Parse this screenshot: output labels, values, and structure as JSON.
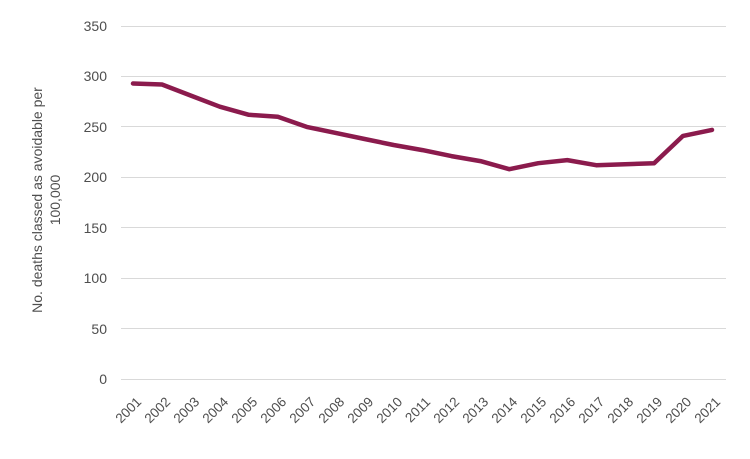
{
  "chart_data": {
    "type": "line",
    "title": "",
    "ylabel_line1": "No. deaths classed as avoidable per",
    "ylabel_line2": "100,000",
    "categories": [
      "2001",
      "2002",
      "2003",
      "2004",
      "2005",
      "2006",
      "2007",
      "2008",
      "2009",
      "2010",
      "2011",
      "2012",
      "2013",
      "2014",
      "2015",
      "2016",
      "2017",
      "2018",
      "2019",
      "2020",
      "2021"
    ],
    "values": [
      293,
      292,
      281,
      270,
      262,
      260,
      250,
      244,
      238,
      232,
      227,
      221,
      216,
      208,
      214,
      217,
      212,
      213,
      214,
      241,
      247
    ],
    "ylim": [
      0,
      350
    ],
    "yticks": [
      350,
      300,
      250,
      200,
      150,
      100,
      50,
      0
    ],
    "grid": "horizontal",
    "legend": "none",
    "line_color": "#8B1B4D",
    "gridline_color": "#D9D9D9",
    "text_color": "#4E4E4E",
    "background_color": "#FFFFFF"
  }
}
